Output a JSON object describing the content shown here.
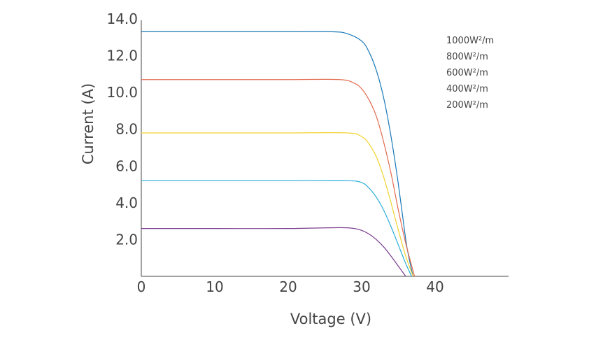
{
  "chart_data": {
    "type": "line",
    "title": "",
    "xlabel": "Voltage (V)",
    "ylabel": "Current (A)",
    "xlim": [
      0,
      50
    ],
    "ylim": [
      0,
      14
    ],
    "x_ticks": [
      0,
      10,
      20,
      30,
      40
    ],
    "x_tick_labels": [
      "0",
      "10",
      "20",
      "30",
      "40"
    ],
    "y_ticks": [
      2,
      4,
      6,
      8,
      10,
      12,
      14
    ],
    "y_tick_labels": [
      "2.0",
      "4.0",
      "6.0",
      "8.0",
      "10.0",
      "12.0",
      "14.0"
    ],
    "grid": false,
    "legend_position": "top-right",
    "series": [
      {
        "name": "1000W²/m",
        "color": "#1a78b8",
        "x": [
          0,
          10,
          20,
          26,
          28,
          30,
          31,
          32,
          33,
          34,
          35,
          36,
          36.5,
          37.0
        ],
        "y": [
          13.3,
          13.3,
          13.3,
          13.3,
          13.2,
          12.8,
          12.2,
          11.2,
          9.7,
          7.6,
          5.0,
          2.0,
          0.9,
          0
        ]
      },
      {
        "name": "800W²/m",
        "color": "#e26a4f",
        "x": [
          0,
          10,
          20,
          27,
          29,
          30,
          31,
          32,
          33,
          34,
          35,
          36,
          37.2
        ],
        "y": [
          10.7,
          10.7,
          10.7,
          10.7,
          10.5,
          10.2,
          9.6,
          8.7,
          7.3,
          5.6,
          3.6,
          1.8,
          0
        ]
      },
      {
        "name": "600W²/m",
        "color": "#f2d230",
        "x": [
          0,
          10,
          20,
          28,
          30,
          31,
          32,
          33,
          34,
          35,
          36,
          37.0
        ],
        "y": [
          7.8,
          7.8,
          7.8,
          7.8,
          7.6,
          7.2,
          6.5,
          5.4,
          4.0,
          2.5,
          1.1,
          0
        ]
      },
      {
        "name": "400W²/m",
        "color": "#2aaed8",
        "x": [
          0,
          10,
          20,
          28,
          30,
          31,
          32,
          33,
          34,
          35,
          36,
          36.8
        ],
        "y": [
          5.2,
          5.2,
          5.2,
          5.2,
          5.1,
          4.8,
          4.3,
          3.6,
          2.7,
          1.7,
          0.7,
          0
        ]
      },
      {
        "name": "200W²/m",
        "color": "#7b3c8e",
        "x": [
          0,
          10,
          20,
          27,
          29,
          30,
          31,
          32,
          33,
          34,
          35,
          36.0
        ],
        "y": [
          2.6,
          2.6,
          2.6,
          2.65,
          2.6,
          2.5,
          2.3,
          2.0,
          1.6,
          1.1,
          0.55,
          0
        ]
      }
    ]
  }
}
